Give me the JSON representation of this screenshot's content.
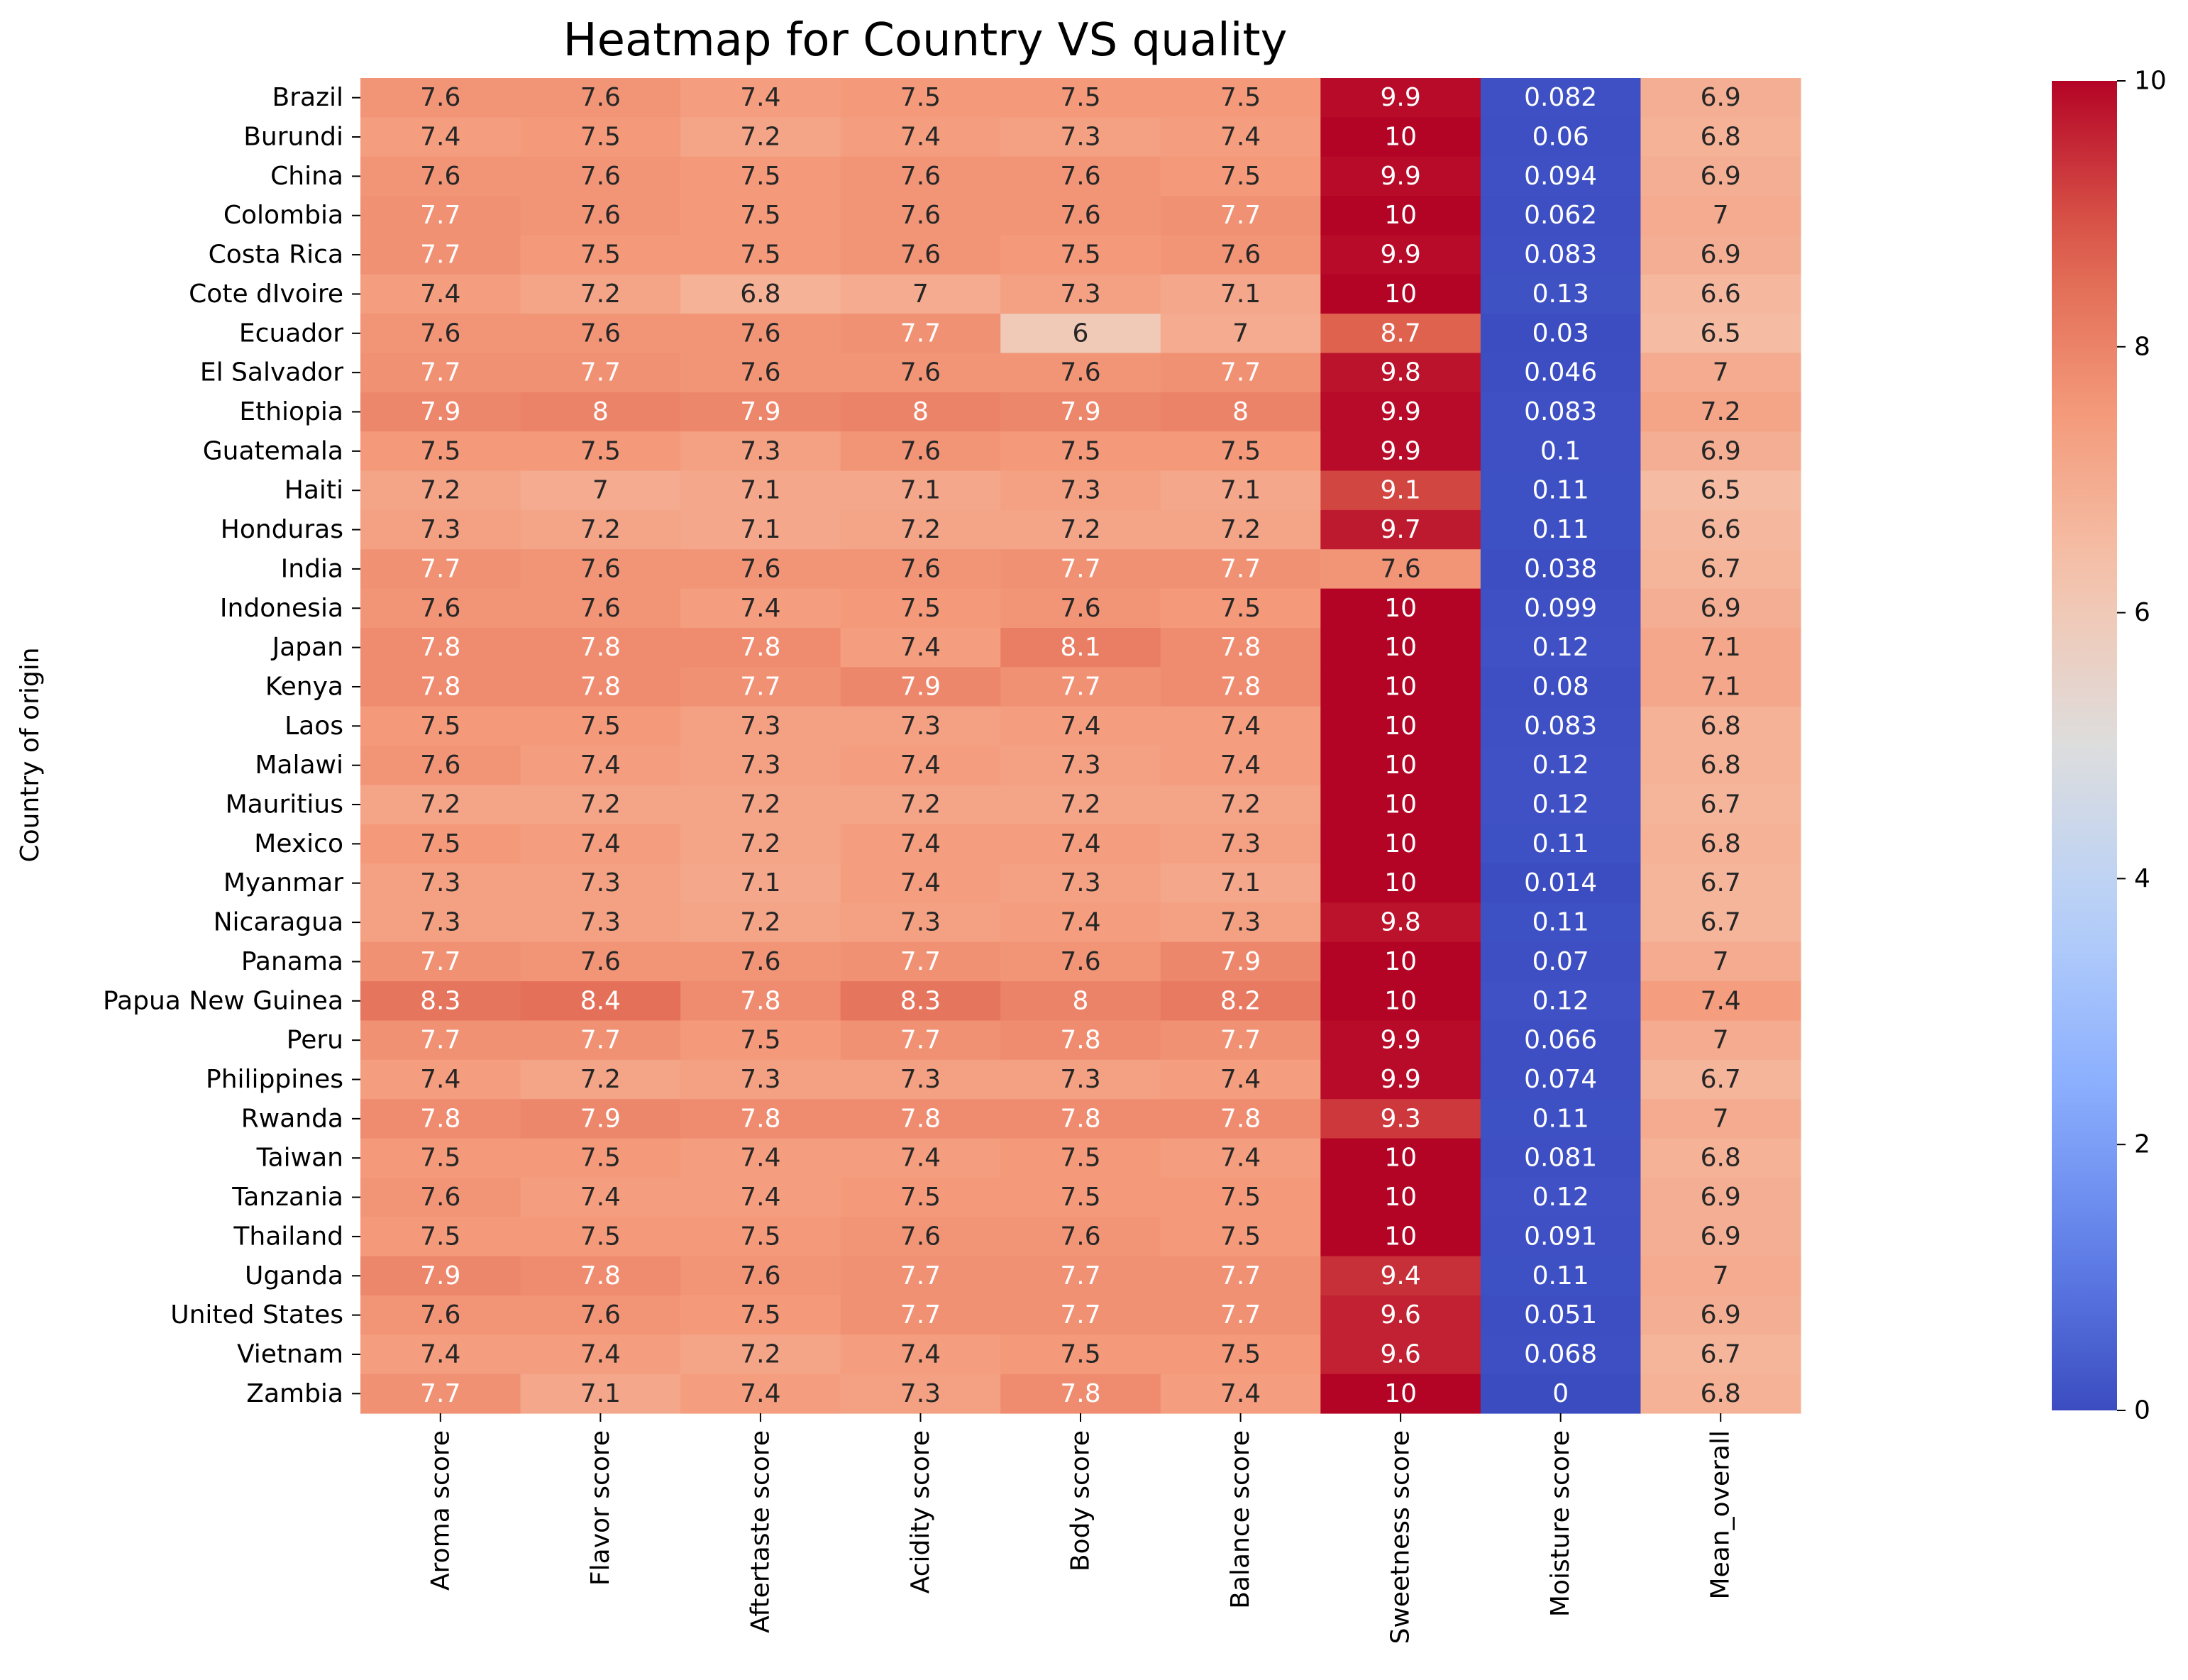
{
  "chart_data": {
    "type": "heatmap",
    "title": "Heatmap for Country VS quality",
    "xlabel": "",
    "ylabel": "Country of origin",
    "colormap": "coolwarm",
    "vmin": 0,
    "vmax": 10,
    "colorbar_ticks": [
      0,
      2,
      4,
      6,
      8,
      10
    ],
    "columns": [
      "Aroma score",
      "Flavor score",
      "Aftertaste score",
      "Acidity score",
      "Body score",
      "Balance score",
      "Sweetness score",
      "Moisture score",
      "Mean_overall"
    ],
    "rows": [
      "Brazil",
      "Burundi",
      "China",
      "Colombia",
      "Costa Rica",
      "Cote dIvoire",
      "Ecuador",
      "El Salvador",
      "Ethiopia",
      "Guatemala",
      "Haiti",
      "Honduras",
      "India",
      "Indonesia",
      "Japan",
      "Kenya",
      "Laos",
      "Malawi",
      "Mauritius",
      "Mexico",
      "Myanmar",
      "Nicaragua",
      "Panama",
      "Papua New Guinea",
      "Peru",
      "Philippines",
      "Rwanda",
      "Taiwan",
      "Tanzania",
      "Thailand",
      "Uganda",
      "United States",
      "Vietnam",
      "Zambia"
    ],
    "values": [
      [
        "7.6",
        "7.6",
        "7.4",
        "7.5",
        "7.5",
        "7.5",
        "9.9",
        "0.082",
        "6.9"
      ],
      [
        "7.4",
        "7.5",
        "7.2",
        "7.4",
        "7.3",
        "7.4",
        "10",
        "0.06",
        "6.8"
      ],
      [
        "7.6",
        "7.6",
        "7.5",
        "7.6",
        "7.6",
        "7.5",
        "9.9",
        "0.094",
        "6.9"
      ],
      [
        "7.7",
        "7.6",
        "7.5",
        "7.6",
        "7.6",
        "7.7",
        "10",
        "0.062",
        "7"
      ],
      [
        "7.7",
        "7.5",
        "7.5",
        "7.6",
        "7.5",
        "7.6",
        "9.9",
        "0.083",
        "6.9"
      ],
      [
        "7.4",
        "7.2",
        "6.8",
        "7",
        "7.3",
        "7.1",
        "10",
        "0.13",
        "6.6"
      ],
      [
        "7.6",
        "7.6",
        "7.6",
        "7.7",
        "6",
        "7",
        "8.7",
        "0.03",
        "6.5"
      ],
      [
        "7.7",
        "7.7",
        "7.6",
        "7.6",
        "7.6",
        "7.7",
        "9.8",
        "0.046",
        "7"
      ],
      [
        "7.9",
        "8",
        "7.9",
        "8",
        "7.9",
        "8",
        "9.9",
        "0.083",
        "7.2"
      ],
      [
        "7.5",
        "7.5",
        "7.3",
        "7.6",
        "7.5",
        "7.5",
        "9.9",
        "0.1",
        "6.9"
      ],
      [
        "7.2",
        "7",
        "7.1",
        "7.1",
        "7.3",
        "7.1",
        "9.1",
        "0.11",
        "6.5"
      ],
      [
        "7.3",
        "7.2",
        "7.1",
        "7.2",
        "7.2",
        "7.2",
        "9.7",
        "0.11",
        "6.6"
      ],
      [
        "7.7",
        "7.6",
        "7.6",
        "7.6",
        "7.7",
        "7.7",
        "7.6",
        "0.038",
        "6.7"
      ],
      [
        "7.6",
        "7.6",
        "7.4",
        "7.5",
        "7.6",
        "7.5",
        "10",
        "0.099",
        "6.9"
      ],
      [
        "7.8",
        "7.8",
        "7.8",
        "7.4",
        "8.1",
        "7.8",
        "10",
        "0.12",
        "7.1"
      ],
      [
        "7.8",
        "7.8",
        "7.7",
        "7.9",
        "7.7",
        "7.8",
        "10",
        "0.08",
        "7.1"
      ],
      [
        "7.5",
        "7.5",
        "7.3",
        "7.3",
        "7.4",
        "7.4",
        "10",
        "0.083",
        "6.8"
      ],
      [
        "7.6",
        "7.4",
        "7.3",
        "7.4",
        "7.3",
        "7.4",
        "10",
        "0.12",
        "6.8"
      ],
      [
        "7.2",
        "7.2",
        "7.2",
        "7.2",
        "7.2",
        "7.2",
        "10",
        "0.12",
        "6.7"
      ],
      [
        "7.5",
        "7.4",
        "7.2",
        "7.4",
        "7.4",
        "7.3",
        "10",
        "0.11",
        "6.8"
      ],
      [
        "7.3",
        "7.3",
        "7.1",
        "7.4",
        "7.3",
        "7.1",
        "10",
        "0.014",
        "6.7"
      ],
      [
        "7.3",
        "7.3",
        "7.2",
        "7.3",
        "7.4",
        "7.3",
        "9.8",
        "0.11",
        "6.7"
      ],
      [
        "7.7",
        "7.6",
        "7.6",
        "7.7",
        "7.6",
        "7.9",
        "10",
        "0.07",
        "7"
      ],
      [
        "8.3",
        "8.4",
        "7.8",
        "8.3",
        "8",
        "8.2",
        "10",
        "0.12",
        "7.4"
      ],
      [
        "7.7",
        "7.7",
        "7.5",
        "7.7",
        "7.8",
        "7.7",
        "9.9",
        "0.066",
        "7"
      ],
      [
        "7.4",
        "7.2",
        "7.3",
        "7.3",
        "7.3",
        "7.4",
        "9.9",
        "0.074",
        "6.7"
      ],
      [
        "7.8",
        "7.9",
        "7.8",
        "7.8",
        "7.8",
        "7.8",
        "9.3",
        "0.11",
        "7"
      ],
      [
        "7.5",
        "7.5",
        "7.4",
        "7.4",
        "7.5",
        "7.4",
        "10",
        "0.081",
        "6.8"
      ],
      [
        "7.6",
        "7.4",
        "7.4",
        "7.5",
        "7.5",
        "7.5",
        "10",
        "0.12",
        "6.9"
      ],
      [
        "7.5",
        "7.5",
        "7.5",
        "7.6",
        "7.6",
        "7.5",
        "10",
        "0.091",
        "6.9"
      ],
      [
        "7.9",
        "7.8",
        "7.6",
        "7.7",
        "7.7",
        "7.7",
        "9.4",
        "0.11",
        "7"
      ],
      [
        "7.6",
        "7.6",
        "7.5",
        "7.7",
        "7.7",
        "7.7",
        "9.6",
        "0.051",
        "6.9"
      ],
      [
        "7.4",
        "7.4",
        "7.2",
        "7.4",
        "7.5",
        "7.5",
        "9.6",
        "0.068",
        "6.7"
      ],
      [
        "7.7",
        "7.1",
        "7.4",
        "7.3",
        "7.8",
        "7.4",
        "10",
        "0",
        "6.8"
      ]
    ]
  }
}
